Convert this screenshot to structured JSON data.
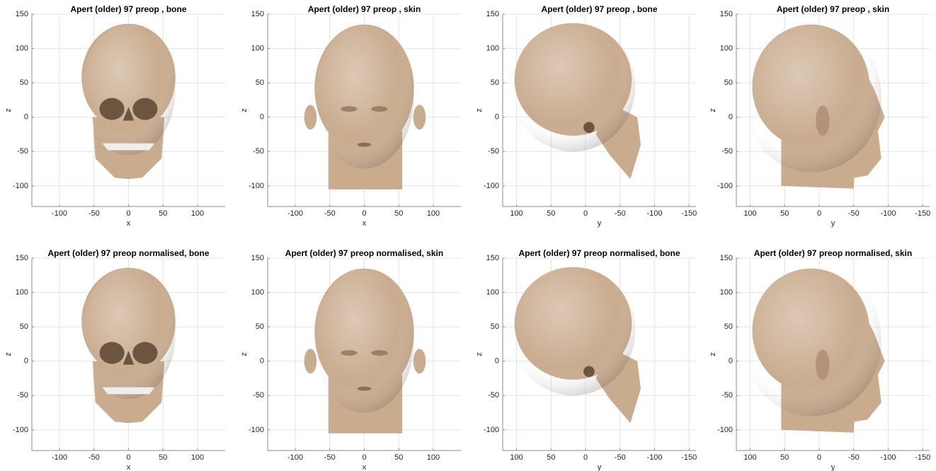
{
  "chart_data": [
    {
      "type": "surface",
      "title": "Apert (older) 97 preop , bone",
      "xlabel": "x",
      "ylabel": "z",
      "xlim": [
        -140,
        140
      ],
      "ylim": [
        -130,
        150
      ],
      "xticks": [
        -100,
        -50,
        0,
        50,
        100
      ],
      "yticks": [
        -100,
        -50,
        0,
        50,
        100,
        150
      ],
      "grid": true,
      "color": "#c9ab8e"
    },
    {
      "type": "surface",
      "title": "Apert (older) 97 preop , skin",
      "xlabel": "x",
      "ylabel": "z",
      "xlim": [
        -140,
        140
      ],
      "ylim": [
        -130,
        150
      ],
      "xticks": [
        -100,
        -50,
        0,
        50,
        100
      ],
      "yticks": [
        -100,
        -50,
        0,
        50,
        100,
        150
      ],
      "grid": true,
      "color": "#c9ab8e"
    },
    {
      "type": "surface",
      "title": "Apert (older) 97 preop , bone",
      "xlabel": "y",
      "ylabel": "z",
      "xlim": [
        120,
        -160
      ],
      "ylim": [
        -130,
        150
      ],
      "xticks": [
        100,
        50,
        0,
        -50,
        -100,
        -150
      ],
      "yticks": [
        -100,
        -50,
        0,
        50,
        100,
        150
      ],
      "grid": true,
      "color": "#c9ab8e"
    },
    {
      "type": "surface",
      "title": "Apert (older) 97 preop , skin",
      "xlabel": "y",
      "ylabel": "z",
      "xlim": [
        120,
        -160
      ],
      "ylim": [
        -130,
        150
      ],
      "xticks": [
        100,
        50,
        0,
        -50,
        -100,
        -150
      ],
      "yticks": [
        -100,
        -50,
        0,
        50,
        100,
        150
      ],
      "grid": true,
      "color": "#c9ab8e"
    },
    {
      "type": "surface",
      "title": "Apert (older) 97 preop normalised, bone",
      "xlabel": "x",
      "ylabel": "z",
      "xlim": [
        -140,
        140
      ],
      "ylim": [
        -130,
        150
      ],
      "xticks": [
        -100,
        -50,
        0,
        50,
        100
      ],
      "yticks": [
        -100,
        -50,
        0,
        50,
        100,
        150
      ],
      "grid": true,
      "color": "#c9ab8e"
    },
    {
      "type": "surface",
      "title": "Apert (older) 97 preop normalised, skin",
      "xlabel": "x",
      "ylabel": "z",
      "xlim": [
        -140,
        140
      ],
      "ylim": [
        -130,
        150
      ],
      "xticks": [
        -100,
        -50,
        0,
        50,
        100
      ],
      "yticks": [
        -100,
        -50,
        0,
        50,
        100,
        150
      ],
      "grid": true,
      "color": "#c9ab8e"
    },
    {
      "type": "surface",
      "title": "Apert (older) 97 preop normalised, bone",
      "xlabel": "y",
      "ylabel": "z",
      "xlim": [
        120,
        -160
      ],
      "ylim": [
        -130,
        150
      ],
      "xticks": [
        100,
        50,
        0,
        -50,
        -100,
        -150
      ],
      "yticks": [
        -100,
        -50,
        0,
        50,
        100,
        150
      ],
      "grid": true,
      "color": "#c9ab8e"
    },
    {
      "type": "surface",
      "title": "Apert (older) 97 preop normalised, skin",
      "xlabel": "y",
      "ylabel": "z",
      "xlim": [
        120,
        -160
      ],
      "ylim": [
        -130,
        150
      ],
      "xticks": [
        100,
        50,
        0,
        -50,
        -100,
        -150
      ],
      "yticks": [
        -100,
        -50,
        0,
        50,
        100,
        150
      ],
      "grid": true,
      "color": "#c9ab8e"
    }
  ]
}
